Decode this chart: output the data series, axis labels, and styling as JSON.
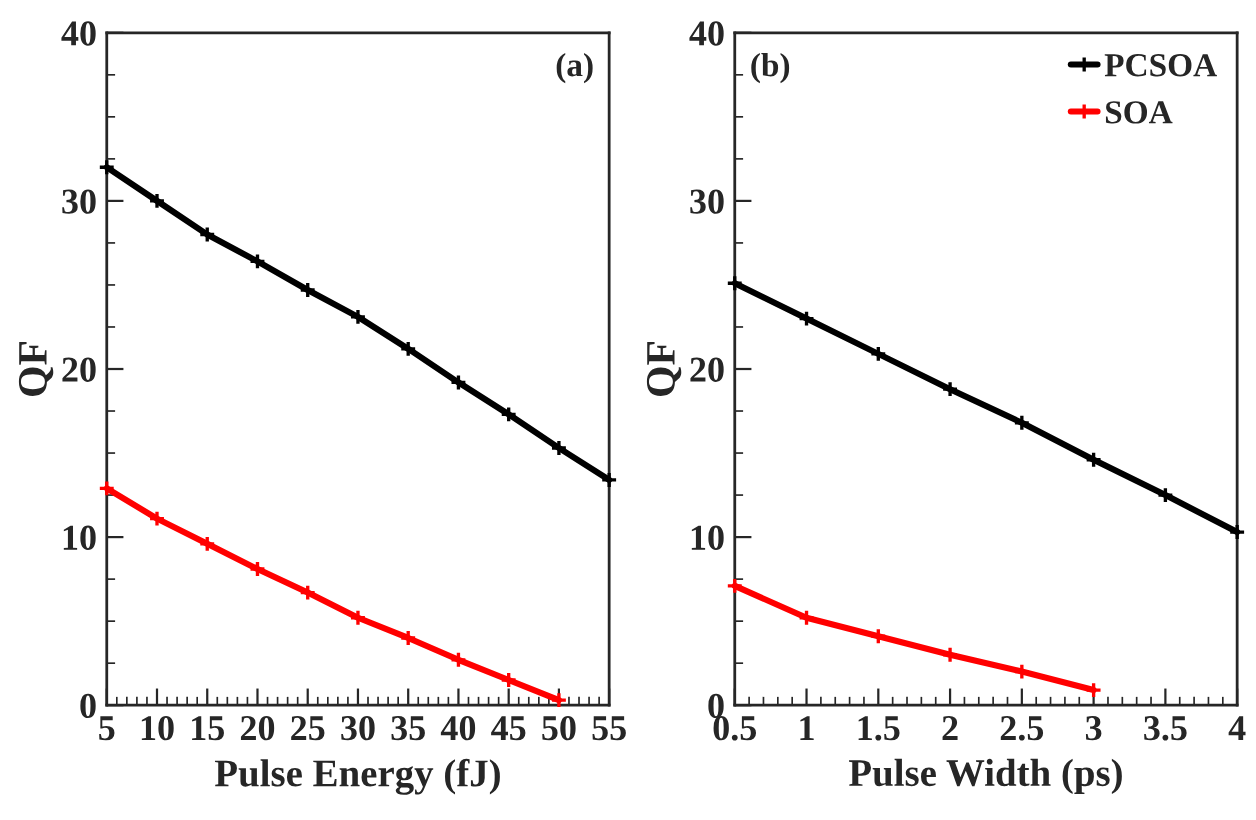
{
  "chart_data": [
    {
      "type": "line",
      "xlabel": "Pulse Energy (fJ)",
      "ylabel": "QF",
      "annotations": [
        "(a)"
      ],
      "xlim": [
        5,
        55
      ],
      "xticks": [
        5,
        10,
        15,
        20,
        25,
        30,
        35,
        40,
        45,
        50,
        55
      ],
      "ylim": [
        0,
        40
      ],
      "yticks": [
        0,
        10,
        20,
        30,
        40
      ],
      "marker": "cross",
      "legend": false,
      "grid": false,
      "series": [
        {
          "color": "#000000",
          "x": [
            5,
            10,
            15,
            20,
            25,
            30,
            35,
            40,
            45,
            50,
            55
          ],
          "values": [
            32,
            30,
            28,
            26.4,
            24.7,
            23.1,
            21.2,
            19.2,
            17.3,
            15.3,
            13.4
          ]
        },
        {
          "color": "#ff0000",
          "x": [
            5,
            10,
            15,
            20,
            25,
            30,
            35,
            40,
            45,
            50
          ],
          "values": [
            12.9,
            11.1,
            9.6,
            8.1,
            6.7,
            5.2,
            4.0,
            2.7,
            1.5,
            0.3
          ]
        }
      ]
    },
    {
      "type": "line",
      "xlabel": "Pulse Width (ps)",
      "ylabel": "QF",
      "annotations": [
        "(b)"
      ],
      "xlim": [
        0.5,
        4
      ],
      "xticks": [
        0.5,
        1,
        1.5,
        2,
        2.5,
        3,
        3.5,
        4
      ],
      "ylim": [
        0,
        40
      ],
      "yticks": [
        0,
        10,
        20,
        30,
        40
      ],
      "marker": "cross",
      "legend": "top right",
      "grid": false,
      "series": [
        {
          "name": "PCSOA",
          "color": "#000000",
          "x": [
            0.5,
            1,
            1.5,
            2,
            2.5,
            3,
            3.5,
            4
          ],
          "values": [
            25.1,
            23.0,
            20.9,
            18.8,
            16.8,
            14.6,
            12.5,
            10.3
          ]
        },
        {
          "name": "SOA",
          "color": "#ff0000",
          "x": [
            0.5,
            1,
            1.5,
            2,
            2.5,
            3
          ],
          "values": [
            7.1,
            5.2,
            4.1,
            3.0,
            2.0,
            0.9
          ]
        }
      ]
    }
  ]
}
